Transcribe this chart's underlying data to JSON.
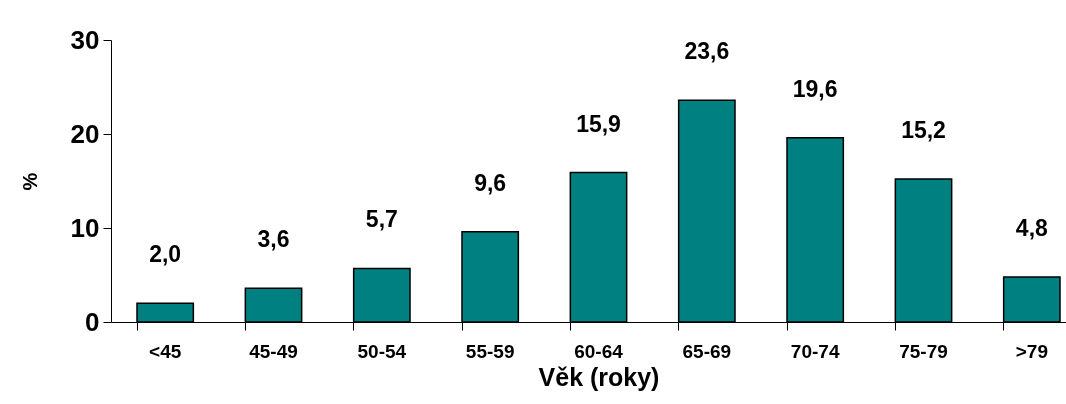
{
  "chart_data": {
    "type": "bar",
    "xlabel": "Věk (roky)",
    "ylabel": "%",
    "categories": [
      "<45",
      "45-49",
      "50-54",
      "55-59",
      "60-64",
      "65-69",
      "70-74",
      "75-79",
      ">79"
    ],
    "values": [
      2.0,
      3.6,
      5.7,
      9.6,
      15.9,
      23.6,
      19.6,
      15.2,
      4.8
    ],
    "value_labels": [
      "2,0",
      "3,6",
      "5,7",
      "9,6",
      "15,9",
      "23,6",
      "19,6",
      "15,2",
      "4,8"
    ],
    "color": "#008080",
    "ylim": [
      0,
      30
    ],
    "yticks": [
      0,
      10,
      20,
      30
    ],
    "grid": false
  }
}
